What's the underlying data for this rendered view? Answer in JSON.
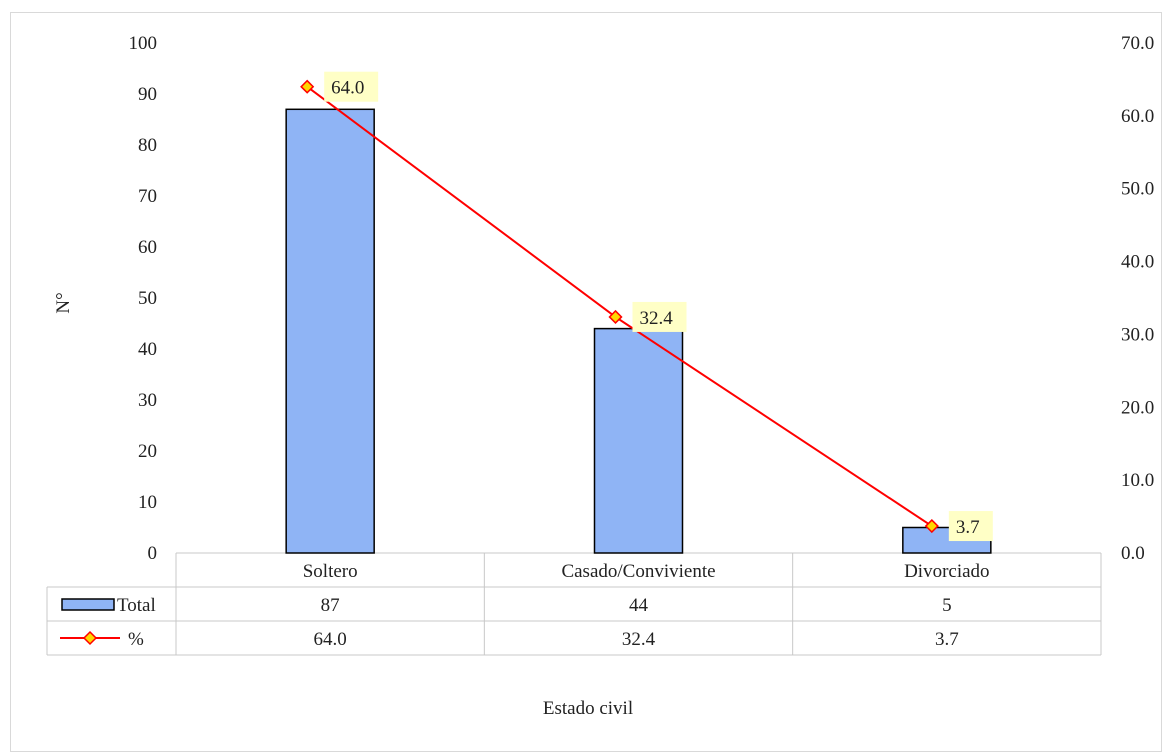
{
  "chart_data": {
    "type": "bar",
    "categories": [
      "Soltero",
      "Casado/Conviviente",
      "Divorciado"
    ],
    "series": [
      {
        "name": "Total",
        "type": "bar",
        "axis": "left",
        "values": [
          87,
          44,
          5
        ],
        "color": "#8fb4f5"
      },
      {
        "name": "%",
        "type": "line",
        "axis": "right",
        "values": [
          64.0,
          32.4,
          3.7
        ],
        "color": "#ff0000",
        "marker_color": "#ffd700"
      }
    ],
    "data_labels": [
      "64.0",
      "32.4",
      "3.7"
    ],
    "xlabel": "Estado civil",
    "ylabel": "N°",
    "ylim": [
      0,
      100
    ],
    "y2lim": [
      0,
      70
    ],
    "yticks": [
      "0",
      "10",
      "20",
      "30",
      "40",
      "50",
      "60",
      "70",
      "80",
      "90",
      "100"
    ],
    "y2ticks": [
      "0.0",
      "10.0",
      "20.0",
      "30.0",
      "40.0",
      "50.0",
      "60.0",
      "70.0"
    ],
    "data_table": {
      "rows": [
        {
          "label": "Total",
          "values": [
            "87",
            "44",
            "5"
          ]
        },
        {
          "label": "%",
          "values": [
            "64.0",
            "32.4",
            "3.7"
          ]
        }
      ]
    },
    "grid": false,
    "legend": "data-table"
  }
}
